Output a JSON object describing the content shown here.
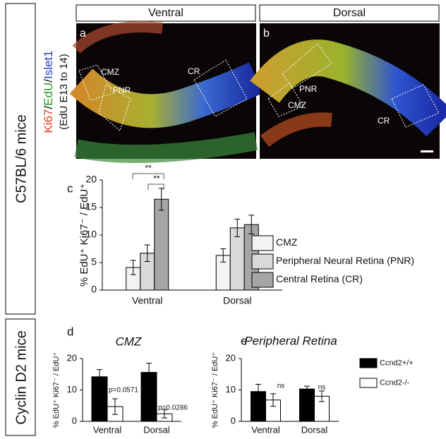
{
  "row_labels": [
    "C57BL/6 mice",
    "Cyclin D2 mice"
  ],
  "stain": {
    "parts": [
      "Ki67",
      "/",
      "EdU",
      "/",
      "Islet1"
    ],
    "note": "(EdU E13 to 14)"
  },
  "images": [
    {
      "header": "Ventral",
      "label": "a",
      "regions": [
        "CMZ",
        "PNR",
        "CR"
      ]
    },
    {
      "header": "Dorsal",
      "label": "b",
      "regions": [
        "PNR",
        "CMZ",
        "CR"
      ]
    }
  ],
  "chart_data": [
    {
      "type": "bar",
      "label": "c",
      "ylabel": "% EdU⁺ Ki67⁻ / EdU⁺",
      "categories": [
        "Ventral",
        "Dorsal"
      ],
      "series": [
        {
          "name": "CMZ",
          "color": "#f4f4f4",
          "values": [
            4.1,
            6.3
          ],
          "errors": [
            1.3,
            1.2
          ]
        },
        {
          "name": "Peripheral Neural Retina (PNR)",
          "color": "#d9d9d9",
          "values": [
            6.7,
            11.3
          ],
          "errors": [
            1.5,
            1.6
          ]
        },
        {
          "name": "Central Retina (CR)",
          "color": "#a6a6a6",
          "values": [
            16.5,
            11.9
          ],
          "errors": [
            2.0,
            1.7
          ]
        }
      ],
      "ylim": [
        0,
        20
      ],
      "yticks": [
        0,
        5,
        10,
        15,
        20
      ],
      "annotations": [
        "**",
        "**"
      ]
    },
    {
      "type": "bar",
      "label": "d",
      "title": "CMZ",
      "ylabel": "% EdU⁺ Ki67⁻ / EdU⁺",
      "categories": [
        "Ventral",
        "Dorsal"
      ],
      "series": [
        {
          "color": "#000000",
          "values": [
            14.2,
            15.6
          ],
          "errors": [
            2.3,
            2.9
          ]
        },
        {
          "color": "#ffffff",
          "values": [
            4.7,
            2.4
          ],
          "errors": [
            2.5,
            1.3
          ]
        }
      ],
      "ylim": [
        0,
        20
      ],
      "yticks": [
        0,
        10,
        20
      ],
      "annotations": [
        "p=0.0571",
        "p=0.0286"
      ]
    },
    {
      "type": "bar",
      "label": "e",
      "title": "Peripheral Retina",
      "ylabel": "% EdU⁺ Ki67⁻ / EdU⁺",
      "categories": [
        "Ventral",
        "Dorsal"
      ],
      "series": [
        {
          "name": "Ccnd2+/+",
          "color": "#000000",
          "values": [
            9.5,
            10.3
          ],
          "errors": [
            2.3,
            0.9
          ]
        },
        {
          "name": "Ccnd2-/-",
          "color": "#ffffff",
          "values": [
            6.8,
            8.0
          ],
          "errors": [
            2.0,
            1.7
          ]
        }
      ],
      "ylim": [
        0,
        20
      ],
      "yticks": [
        0,
        10,
        20
      ],
      "annotations": [
        "ns",
        "ns"
      ]
    }
  ]
}
